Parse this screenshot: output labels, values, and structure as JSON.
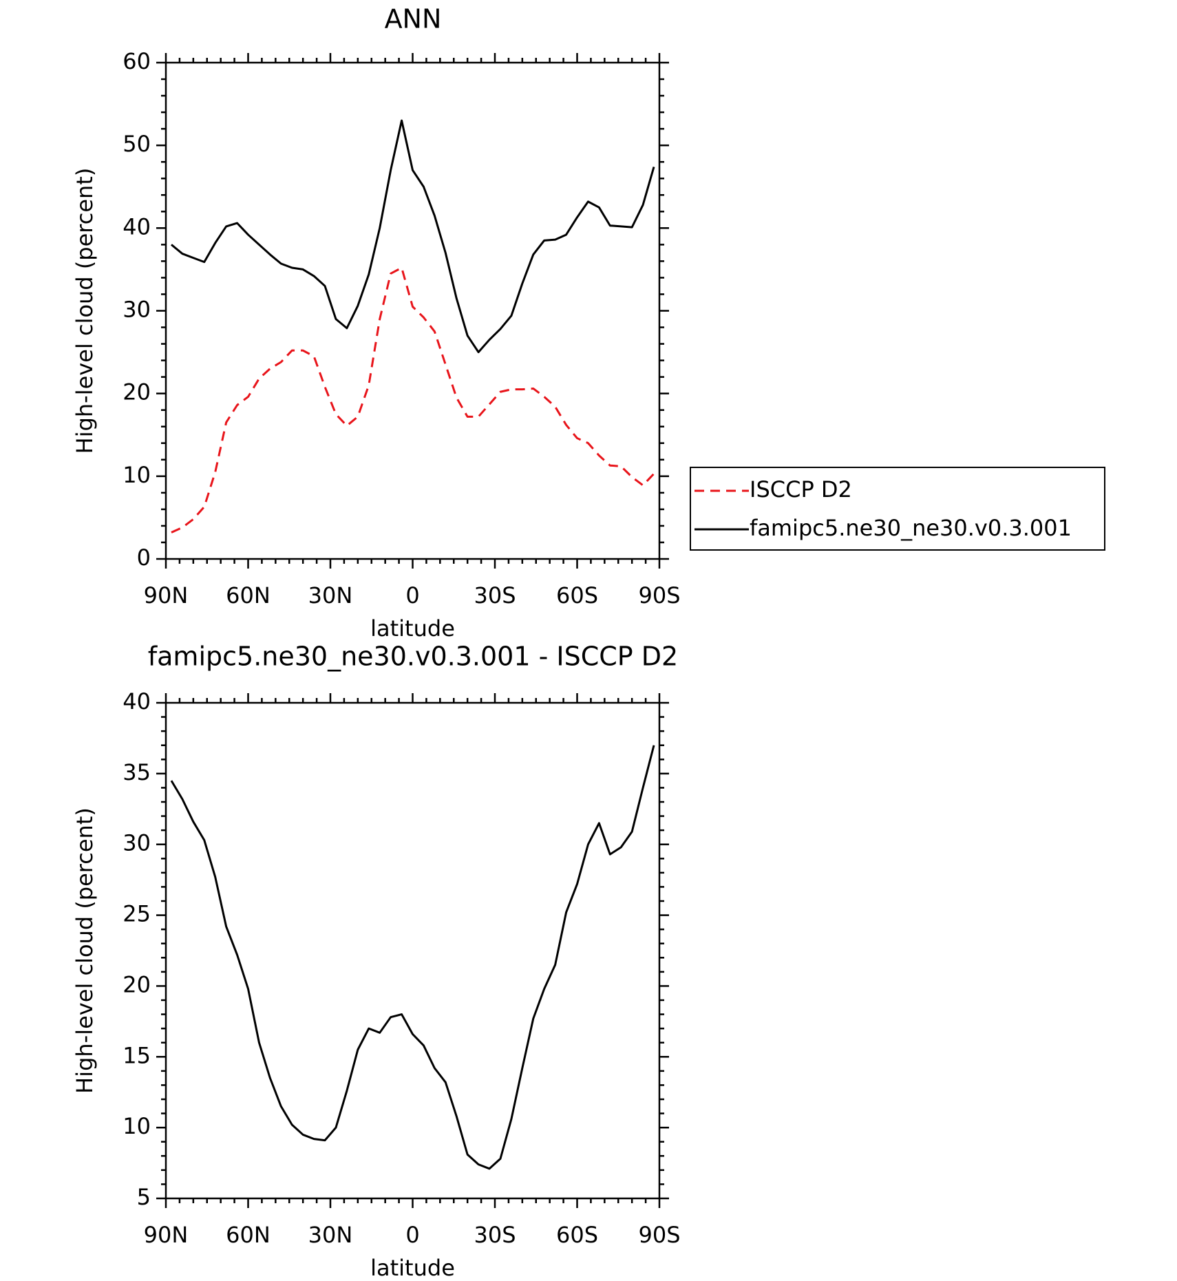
{
  "chart_data": [
    {
      "type": "line",
      "title": "ANN",
      "xlabel": "latitude",
      "ylabel": "High-level cloud (percent)",
      "x": [
        88,
        84,
        80,
        76,
        72,
        68,
        64,
        60,
        56,
        52,
        48,
        44,
        40,
        36,
        32,
        28,
        24,
        20,
        16,
        12,
        8,
        4,
        0,
        -4,
        -8,
        -12,
        -16,
        -20,
        -24,
        -28,
        -32,
        -36,
        -40,
        -44,
        -48,
        -52,
        -56,
        -60,
        -64,
        -68,
        -72,
        -76,
        -80,
        -84,
        -88
      ],
      "xlim": [
        90,
        -90
      ],
      "xticks": [
        {
          "value": 90,
          "label": "90N"
        },
        {
          "value": 60,
          "label": "60N"
        },
        {
          "value": 30,
          "label": "30N"
        },
        0,
        {
          "value": -30,
          "label": "30S"
        },
        {
          "value": -60,
          "label": "60S"
        },
        {
          "value": -90,
          "label": "90S"
        }
      ],
      "ylim": [
        0,
        60
      ],
      "yticks": [
        0,
        10,
        20,
        30,
        40,
        50,
        60
      ],
      "legend": "right",
      "series": [
        {
          "name": "ISCCP D2",
          "color": "#e8141a",
          "dashed": true,
          "values": [
            3.2,
            3.8,
            4.8,
            6.3,
            10.5,
            16.5,
            18.6,
            19.6,
            21.8,
            23,
            23.8,
            25.2,
            25.2,
            24.5,
            20.8,
            17.5,
            16.1,
            17.2,
            21,
            29,
            34.5,
            35.2,
            30.5,
            29.2,
            27.5,
            23.5,
            19.5,
            17.2,
            17.2,
            18.7,
            20.2,
            20.5,
            20.5,
            20.6,
            19.6,
            18.4,
            16.2,
            14.6,
            14,
            12.5,
            11.3,
            11.2,
            9.9,
            8.9,
            10.3
          ]
        },
        {
          "name": "famipc5.ne30_ne30.v0.3.001",
          "color": "#000000",
          "dashed": false,
          "values": [
            38,
            36.9,
            36.4,
            35.9,
            38.2,
            40.2,
            40.6,
            39.2,
            38,
            36.8,
            35.7,
            35.2,
            35,
            34.2,
            33,
            29,
            27.9,
            30.6,
            34.4,
            40,
            47,
            53,
            47,
            45,
            41.5,
            37,
            31.5,
            27,
            25,
            26.5,
            27.8,
            29.4,
            33.3,
            36.8,
            38.5,
            38.6,
            39.2,
            41.3,
            43.2,
            42.5,
            40.3,
            40.2,
            40.1,
            42.8,
            47.4
          ]
        }
      ]
    },
    {
      "type": "line",
      "title": "famipc5.ne30_ne30.v0.3.001 - ISCCP D2",
      "xlabel": "latitude",
      "ylabel": "High-level cloud (percent)",
      "x": [
        88,
        84,
        80,
        76,
        72,
        68,
        64,
        60,
        56,
        52,
        48,
        44,
        40,
        36,
        32,
        28,
        24,
        20,
        16,
        12,
        8,
        4,
        0,
        -4,
        -8,
        -12,
        -16,
        -20,
        -24,
        -28,
        -32,
        -36,
        -40,
        -44,
        -48,
        -52,
        -56,
        -60,
        -64,
        -68,
        -72,
        -76,
        -80,
        -84,
        -88
      ],
      "xlim": [
        90,
        -90
      ],
      "xticks": [
        {
          "value": 90,
          "label": "90N"
        },
        {
          "value": 60,
          "label": "60N"
        },
        {
          "value": 30,
          "label": "30N"
        },
        0,
        {
          "value": -30,
          "label": "30S"
        },
        {
          "value": -60,
          "label": "60S"
        },
        {
          "value": -90,
          "label": "90S"
        }
      ],
      "ylim": [
        5,
        40
      ],
      "yticks": [
        5,
        10,
        15,
        20,
        25,
        30,
        35,
        40
      ],
      "series": [
        {
          "color": "#000000",
          "dashed": false,
          "values": [
            34.5,
            33.2,
            31.6,
            30.3,
            27.7,
            24.2,
            22.2,
            19.8,
            16,
            13.5,
            11.5,
            10.2,
            9.5,
            9.2,
            9.1,
            10,
            12.6,
            15.5,
            17,
            16.7,
            17.8,
            18,
            16.6,
            15.8,
            14.2,
            13.2,
            10.8,
            8.1,
            7.4,
            7.1,
            7.8,
            10.6,
            14.2,
            17.7,
            19.8,
            21.5,
            25.2,
            27.2,
            30,
            31.5,
            29.3,
            29.8,
            30.9,
            34,
            37
          ]
        }
      ]
    }
  ]
}
